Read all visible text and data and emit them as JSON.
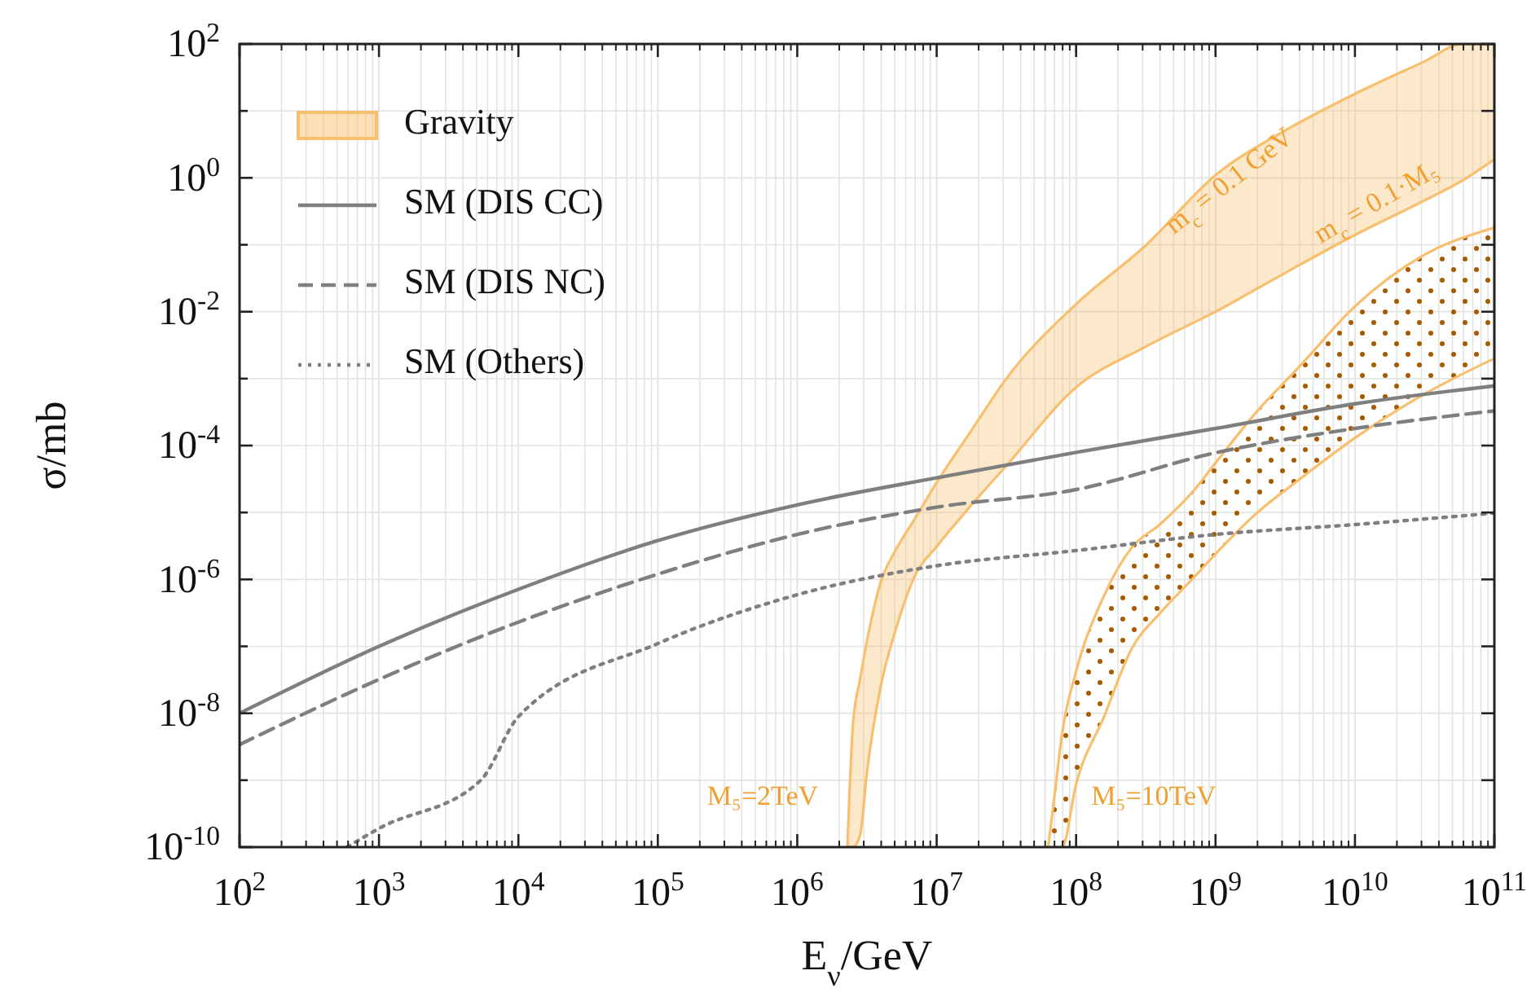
{
  "chart_data": {
    "type": "line",
    "xlabel": "E$_{ν}$/GeV",
    "ylabel": "σ/mb",
    "log": "xy",
    "grid": true,
    "legend": "top left",
    "xlim": [
      100.0,
      100000000000.0
    ],
    "ylim": [
      1e-10,
      100.0
    ],
    "xticks": [
      {
        "value": 100.0,
        "label": "10$^{2}$"
      },
      {
        "value": 1000.0,
        "label": "10$^{3}$"
      },
      {
        "value": 10000.0,
        "label": "10$^{4}$"
      },
      {
        "value": 100000.0,
        "label": "10$^{5}$"
      },
      {
        "value": 1000000.0,
        "label": "10$^{6}$"
      },
      {
        "value": 10000000.0,
        "label": "10$^{7}$"
      },
      {
        "value": 100000000.0,
        "label": "10$^{8}$"
      },
      {
        "value": 1000000000.0,
        "label": "10$^{9}$"
      },
      {
        "value": 10000000000.0,
        "label": "10$^{10}$"
      },
      {
        "value": 100000000000.0,
        "label": "10$^{11}$"
      }
    ],
    "yticks": [
      {
        "value": 1e-10,
        "label": "10$^{-10}$"
      },
      {
        "value": 1e-09,
        "label": null
      },
      {
        "value": 1e-08,
        "label": "10$^{-8}$"
      },
      {
        "value": 1e-07,
        "label": null
      },
      {
        "value": 1e-06,
        "label": "10$^{-6}$"
      },
      {
        "value": 1e-05,
        "label": null
      },
      {
        "value": 0.0001,
        "label": "10$^{-4}$"
      },
      {
        "value": 0.001,
        "label": null
      },
      {
        "value": 0.01,
        "label": "10$^{-2}$"
      },
      {
        "value": 0.1,
        "label": null
      },
      {
        "value": 1,
        "label": "10$^{0}$"
      },
      {
        "value": 10,
        "label": null
      },
      {
        "value": 100.0,
        "label": "10$^{2}$"
      }
    ],
    "series": [
      {
        "name": "Gravity",
        "color": "#f7bf6e",
        "x": [
          2290000.0,
          2510000.0,
          2820000.0,
          3160000.0,
          3980000.0,
          5010000.0,
          7080000.0,
          10000000.0,
          17800000.0,
          31600000.0,
          100000000.0,
          316000000.0,
          1000000000.0,
          3160000000.0,
          10000000000.0,
          31600000000.0,
          58900000000.0,
          100000000000.0
        ],
        "values": [
          null,
          null,
          null,
          null,
          null,
          null,
          null,
          null,
          null,
          null,
          null,
          null,
          null,
          null,
          null,
          null,
          null,
          null
        ],
        "upper": [
          1e-10,
          6.9e-09,
          3.2e-08,
          1.2e-07,
          9.3e-07,
          2.6e-06,
          8.5e-06,
          2.8e-05,
          0.00017,
          0.001,
          0.013,
          0.098,
          1.1,
          5.1,
          18,
          55,
          100,
          100
        ],
        "lower": [
          1e-10,
          1e-10,
          1.5e-10,
          1.3e-09,
          2.6e-08,
          1.6e-07,
          1.2e-06,
          3.1e-06,
          1.3e-05,
          5e-05,
          0.00074,
          0.003,
          0.01,
          0.038,
          0.14,
          0.46,
          0.91,
          1.9
        ]
      },
      {
        "color": "#f7bf6e",
        "x": [
          63100000.0,
          70800000.0,
          79400000.0,
          100000000.0,
          158000000.0,
          251000000.0,
          398000000.0,
          708000000.0,
          1000000000.0,
          2000000000.0,
          3980000000.0,
          10000000000.0,
          31600000000.0,
          100000000000.0
        ],
        "values": [
          null,
          null,
          null,
          null,
          null,
          null,
          null,
          null,
          null,
          null,
          null,
          null,
          null,
          null
        ],
        "upper": [
          1e-10,
          7.1e-10,
          5e-09,
          4.2e-08,
          5.6e-07,
          3e-06,
          6.6e-06,
          2.2e-05,
          5.5e-05,
          0.00033,
          0.0015,
          0.012,
          0.071,
          0.18
        ],
        "lower": [
          1e-10,
          1e-10,
          1e-10,
          8.7e-10,
          8.7e-09,
          9.3e-08,
          3.1e-07,
          1.1e-06,
          2.4e-06,
          1e-05,
          3.1e-05,
          0.00013,
          0.00059,
          0.002
        ]
      },
      {
        "name": "SM (DIS CC)",
        "color": "#7f7f7f",
        "line_style": "solid",
        "x": [
          100.0,
          1000.0,
          10000.0,
          100000.0,
          1000000.0,
          10000000.0,
          100000000.0,
          1000000000.0,
          10000000000.0,
          100000000000.0
        ],
        "values": [
          1e-08,
          1e-07,
          7.1e-07,
          3.8e-06,
          1.3e-05,
          3.3e-05,
          7.9e-05,
          0.00018,
          0.00042,
          0.00078
        ]
      },
      {
        "name": "SM (DIS NC)",
        "color": "#7f7f7f",
        "line_style": "dashed",
        "x": [
          100.0,
          1000.0,
          10000.0,
          100000.0,
          1000000.0,
          10000000.0,
          100000000.0,
          1000000000.0,
          10000000000.0,
          100000000000.0
        ],
        "values": [
          3.4e-09,
          3.2e-08,
          2.3e-07,
          1.2e-06,
          4.7e-06,
          1.2e-05,
          2.2e-05,
          7.8e-05,
          0.00018,
          0.00033
        ]
      },
      {
        "name": "SM (Others)",
        "color": "#7f7f7f",
        "line_style": "dotted",
        "x": [
          589.0,
          1000.0,
          5370.0,
          10000.0,
          100000.0,
          1000000.0,
          10000000.0,
          100000000.0,
          1000000000.0,
          10000000000.0,
          100000000000.0
        ],
        "values": [
          1e-10,
          1.9e-10,
          1e-09,
          8.9e-09,
          1.1e-07,
          5.9e-07,
          1.6e-06,
          2.7e-06,
          4.7e-06,
          6.6e-06,
          9.8e-06
        ]
      }
    ],
    "annotations": [
      "m$_{c}$ = 0.1 GeV",
      "m$_{c}$ = 0.1·M₅",
      "M₅=2TeV",
      "M₅=10TeV"
    ]
  }
}
